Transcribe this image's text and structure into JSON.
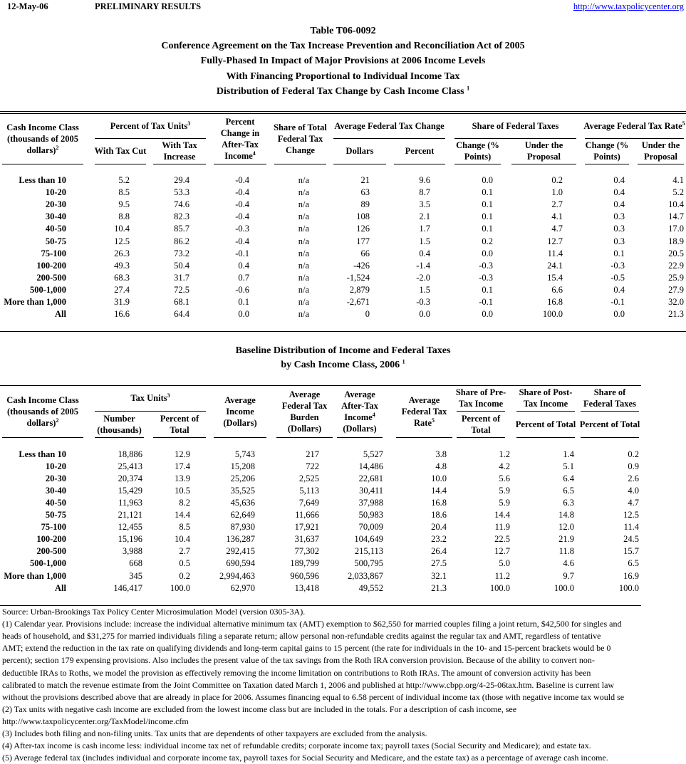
{
  "header": {
    "date": "12-May-06",
    "status": "PRELIMINARY RESULTS",
    "url": "http://www.taxpolicycenter.org"
  },
  "table1": {
    "title_lines": [
      "Table T06-0092",
      "Conference Agreement on the Tax Increase Prevention and Reconciliation Act of 2005",
      "Fully-Phased In Impact of Major Provisions at 2006 Income Levels",
      "With Financing Proportional to Individual Income Tax",
      "Distribution of Federal Tax Change by Cash Income Class"
    ],
    "title_sup": "1",
    "headers": [
      {
        "text": "Cash Income Class (thousands of 2005 dollars)",
        "sup": "2"
      },
      {
        "text": "Percent of Tax Units",
        "sup": "3",
        "sub": [
          {
            "text": "With Tax Cut"
          },
          {
            "text": "With Tax Increase"
          }
        ]
      },
      {
        "text": "Percent Change in After-Tax Income",
        "sup": "4"
      },
      {
        "text": "Share of Total Federal Tax Change"
      },
      {
        "text": "Average Federal Tax Change",
        "sub": [
          {
            "text": "Dollars"
          },
          {
            "text": "Percent"
          }
        ]
      },
      {
        "text": "Share of Federal Taxes",
        "sub": [
          {
            "text": "Change (% Points)"
          },
          {
            "text": "Under the Proposal"
          }
        ]
      },
      {
        "text": "Average Federal Tax Rate",
        "sup": "5",
        "sub": [
          {
            "text": "Change (% Points)"
          },
          {
            "text": "Under the Proposal"
          }
        ]
      }
    ],
    "rows": [
      [
        "Less than 10",
        "5.2",
        "29.4",
        "-0.4",
        "n/a",
        "21",
        "9.6",
        "0.0",
        "0.2",
        "0.4",
        "4.1"
      ],
      [
        "10-20",
        "8.5",
        "53.3",
        "-0.4",
        "n/a",
        "63",
        "8.7",
        "0.1",
        "1.0",
        "0.4",
        "5.2"
      ],
      [
        "20-30",
        "9.5",
        "74.6",
        "-0.4",
        "n/a",
        "89",
        "3.5",
        "0.1",
        "2.7",
        "0.4",
        "10.4"
      ],
      [
        "30-40",
        "8.8",
        "82.3",
        "-0.4",
        "n/a",
        "108",
        "2.1",
        "0.1",
        "4.1",
        "0.3",
        "14.7"
      ],
      [
        "40-50",
        "10.4",
        "85.7",
        "-0.3",
        "n/a",
        "126",
        "1.7",
        "0.1",
        "4.7",
        "0.3",
        "17.0"
      ],
      [
        "50-75",
        "12.5",
        "86.2",
        "-0.4",
        "n/a",
        "177",
        "1.5",
        "0.2",
        "12.7",
        "0.3",
        "18.9"
      ],
      [
        "75-100",
        "26.3",
        "73.2",
        "-0.1",
        "n/a",
        "66",
        "0.4",
        "0.0",
        "11.4",
        "0.1",
        "20.5"
      ],
      [
        "100-200",
        "49.3",
        "50.4",
        "0.4",
        "n/a",
        "-426",
        "-1.4",
        "-0.3",
        "24.1",
        "-0.3",
        "22.9"
      ],
      [
        "200-500",
        "68.3",
        "31.7",
        "0.7",
        "n/a",
        "-1,524",
        "-2.0",
        "-0.3",
        "15.4",
        "-0.5",
        "25.9"
      ],
      [
        "500-1,000",
        "27.4",
        "72.5",
        "-0.6",
        "n/a",
        "2,879",
        "1.5",
        "0.1",
        "6.6",
        "0.4",
        "27.9"
      ],
      [
        "More than 1,000",
        "31.9",
        "68.1",
        "0.1",
        "n/a",
        "-2,671",
        "-0.3",
        "-0.1",
        "16.8",
        "-0.1",
        "32.0"
      ],
      [
        "All",
        "16.6",
        "64.4",
        "0.0",
        "n/a",
        "0",
        "0.0",
        "0.0",
        "100.0",
        "0.0",
        "21.3"
      ]
    ]
  },
  "table2": {
    "title_lines": [
      "Baseline Distribution of Income and Federal Taxes",
      "by Cash Income Class, 2006"
    ],
    "title_sup": "1",
    "headers": [
      {
        "text": "Cash Income Class (thousands of 2005 dollars)",
        "sup": "2"
      },
      {
        "text": "Tax Units",
        "sup": "3",
        "sub": [
          {
            "text": "Number (thousands)"
          },
          {
            "text": "Percent of Total"
          }
        ]
      },
      {
        "text": "Average Income (Dollars)"
      },
      {
        "text": "Average Federal Tax Burden (Dollars)"
      },
      {
        "text": "Average After-Tax Income",
        "sup": "4",
        "tail": "(Dollars)"
      },
      {
        "text": "Average Federal Tax Rate",
        "sup": "5"
      },
      {
        "text": "Share of Pre-Tax Income",
        "sub": [
          {
            "text": "Percent of Total"
          }
        ]
      },
      {
        "text": "Share of Post-Tax Income",
        "sub": [
          {
            "text": "Percent of Total"
          }
        ]
      },
      {
        "text": "Share of Federal Taxes",
        "sub": [
          {
            "text": "Percent of Total"
          }
        ]
      }
    ],
    "rows": [
      [
        "Less than 10",
        "18,886",
        "12.9",
        "5,743",
        "217",
        "5,527",
        "3.8",
        "1.2",
        "1.4",
        "0.2"
      ],
      [
        "10-20",
        "25,413",
        "17.4",
        "15,208",
        "722",
        "14,486",
        "4.8",
        "4.2",
        "5.1",
        "0.9"
      ],
      [
        "20-30",
        "20,374",
        "13.9",
        "25,206",
        "2,525",
        "22,681",
        "10.0",
        "5.6",
        "6.4",
        "2.6"
      ],
      [
        "30-40",
        "15,429",
        "10.5",
        "35,525",
        "5,113",
        "30,411",
        "14.4",
        "5.9",
        "6.5",
        "4.0"
      ],
      [
        "40-50",
        "11,963",
        "8.2",
        "45,636",
        "7,649",
        "37,988",
        "16.8",
        "5.9",
        "6.3",
        "4.7"
      ],
      [
        "50-75",
        "21,121",
        "14.4",
        "62,649",
        "11,666",
        "50,983",
        "18.6",
        "14.4",
        "14.8",
        "12.5"
      ],
      [
        "75-100",
        "12,455",
        "8.5",
        "87,930",
        "17,921",
        "70,009",
        "20.4",
        "11.9",
        "12.0",
        "11.4"
      ],
      [
        "100-200",
        "15,196",
        "10.4",
        "136,287",
        "31,637",
        "104,649",
        "23.2",
        "22.5",
        "21.9",
        "24.5"
      ],
      [
        "200-500",
        "3,988",
        "2.7",
        "292,415",
        "77,302",
        "215,113",
        "26.4",
        "12.7",
        "11.8",
        "15.7"
      ],
      [
        "500-1,000",
        "668",
        "0.5",
        "690,594",
        "189,799",
        "500,795",
        "27.5",
        "5.0",
        "4.6",
        "6.5"
      ],
      [
        "More than 1,000",
        "345",
        "0.2",
        "2,994,463",
        "960,596",
        "2,033,867",
        "32.1",
        "11.2",
        "9.7",
        "16.9"
      ],
      [
        "All",
        "146,417",
        "100.0",
        "62,970",
        "13,418",
        "49,552",
        "21.3",
        "100.0",
        "100.0",
        "100.0"
      ]
    ]
  },
  "notes": [
    "Source: Urban-Brookings Tax Policy Center Microsimulation Model (version 0305-3A).",
    "(1) Calendar year. Provisions include: increase the individual alternative minimum tax (AMT) exemption to $62,550 for married couples filing a joint return, $42,500 for singles and",
    "heads of household, and $31,275 for married individuals filing a separate return; allow personal non-refundable credits against the regular tax and AMT, regardless of tentative",
    "AMT; extend the reduction in the tax rate on qualifying dividends and long-term capital gains to 15 percent (the rate for individuals in the 10- and 15-percent brackets would be 0",
    "percent); section 179 expensing provisions.  Also includes the present value of the tax savings from the Roth IRA conversion provision.  Because of the ability to convert non-",
    "deductible IRAs to Roths, we model the provision as effectively removing the income limitation on contributions to Roth IRAs.  The amount of conversion activity has been",
    "calibrated to match the revenue estimate from the Joint Committee on Taxation dated March 1, 2006 and published at http://www.cbpp.org/4-25-06tax.htm.  Baseline is current law",
    "without the provisions described above that are already in place for 2006.  Assumes financing equal to 6.58 percent of individual income tax (those with negative income tax would se",
    "(2) Tax units with negative cash income are excluded from the lowest income class but are included in the totals. For a description of cash income, see",
    "http://www.taxpolicycenter.org/TaxModel/income.cfm",
    "(3) Includes both filing and non-filing units.  Tax units that are dependents of other taxpayers are excluded from the analysis.",
    "(4) After-tax income is cash income less: individual income tax net of refundable credits; corporate income tax; payroll taxes (Social Security and Medicare); and estate tax.",
    "(5) Average federal tax (includes individual and corporate income tax, payroll taxes for Social Security and Medicare, and the estate tax) as a percentage of average cash income."
  ]
}
